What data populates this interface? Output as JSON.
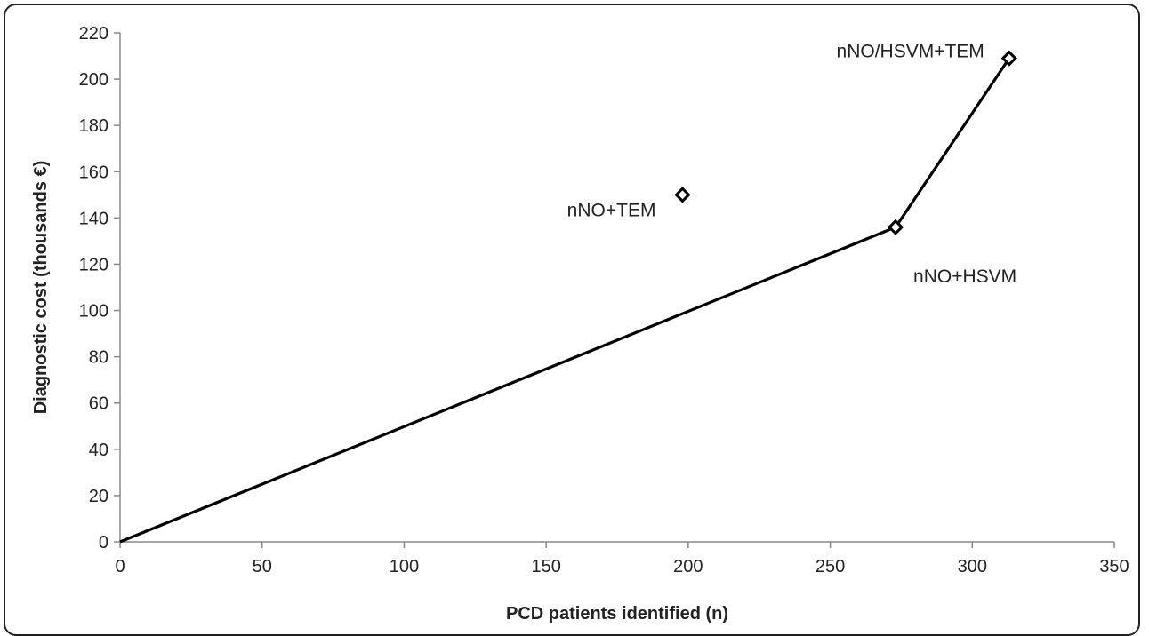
{
  "chart_data": {
    "type": "scatter",
    "xlabel": "PCD patients identified (n)",
    "ylabel": "Diagnostic cost (thousands €)",
    "xlim": [
      0,
      350
    ],
    "ylim": [
      0,
      220
    ],
    "xticks": [
      0,
      50,
      100,
      150,
      200,
      250,
      300,
      350
    ],
    "yticks": [
      0,
      20,
      40,
      60,
      80,
      100,
      120,
      140,
      160,
      180,
      200,
      220
    ],
    "grid": false,
    "legend": "none",
    "points": [
      {
        "label": "nNO+TEM",
        "x": 198,
        "y": 150
      },
      {
        "label": "nNO+HSVM",
        "x": 273,
        "y": 136
      },
      {
        "label": "nNO/HSVM+TEM",
        "x": 313,
        "y": 209
      }
    ],
    "frontier": {
      "x": [
        0,
        273,
        313
      ],
      "y": [
        0,
        136,
        209
      ]
    },
    "colors": {
      "line": "#000000",
      "marker": "#000000",
      "axis": "#888888",
      "text": "#222222"
    }
  }
}
